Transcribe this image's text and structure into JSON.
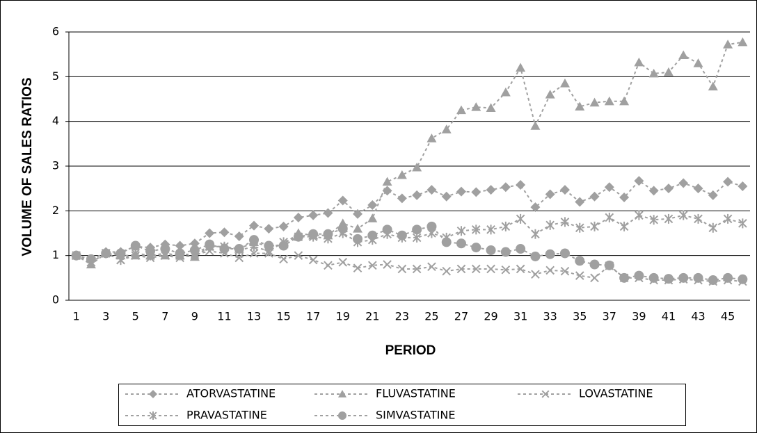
{
  "chart_data": {
    "type": "line",
    "x_label": "PERIOD",
    "y_label": "VOLUME OF SALES  RATIOS",
    "categories": [
      1,
      null,
      3,
      null,
      5,
      null,
      7,
      null,
      9,
      null,
      11,
      null,
      13,
      null,
      15,
      null,
      17,
      null,
      19,
      null,
      21,
      null,
      23,
      null,
      25,
      null,
      27,
      null,
      29,
      null,
      31,
      null,
      33,
      null,
      35,
      null,
      37,
      null,
      39,
      null,
      41,
      null,
      43,
      null,
      45,
      null
    ],
    "ylim": [
      0,
      6
    ],
    "yticks": [
      0,
      1,
      2,
      3,
      4,
      5,
      6
    ],
    "grid": true,
    "legend": "bottom",
    "series": [
      {
        "name": "ATORVASTATINE",
        "color": "#a0a0a0",
        "marker": "diamond",
        "values": [
          1.0,
          0.9,
          1.08,
          1.08,
          1.2,
          1.18,
          1.25,
          1.22,
          1.27,
          1.5,
          1.52,
          1.43,
          1.67,
          1.6,
          1.65,
          1.85,
          1.9,
          1.95,
          2.23,
          1.93,
          2.13,
          2.45,
          2.28,
          2.35,
          2.47,
          2.32,
          2.43,
          2.42,
          2.47,
          2.53,
          2.58,
          2.08,
          2.37,
          2.47,
          2.2,
          2.32,
          2.53,
          2.3,
          2.67,
          2.45,
          2.5,
          2.62,
          2.5,
          2.35,
          2.65,
          2.55
        ]
      },
      {
        "name": "FLUVASTATINE",
        "color": "#a0a0a0",
        "marker": "triangle",
        "values": [
          1.0,
          0.8,
          1.05,
          1.0,
          1.0,
          1.0,
          1.0,
          1.0,
          0.97,
          1.2,
          1.2,
          1.15,
          1.3,
          1.2,
          1.25,
          1.5,
          1.45,
          1.45,
          1.72,
          1.6,
          1.83,
          2.65,
          2.8,
          2.97,
          3.62,
          3.82,
          4.25,
          4.32,
          4.3,
          4.65,
          5.2,
          3.9,
          4.6,
          4.85,
          4.33,
          4.42,
          4.45,
          4.45,
          5.32,
          5.07,
          5.1,
          5.48,
          5.3,
          4.78,
          5.72,
          5.77
        ]
      },
      {
        "name": "LOVASTATINE",
        "color": "#a0a0a0",
        "marker": "x",
        "values": [
          1.0,
          0.85,
          1.05,
          0.9,
          1.0,
          0.95,
          1.0,
          0.95,
          1.02,
          1.1,
          1.05,
          0.95,
          1.05,
          1.05,
          0.92,
          1.0,
          0.9,
          0.78,
          0.85,
          0.72,
          0.78,
          0.8,
          0.7,
          0.7,
          0.75,
          0.65,
          0.7,
          0.7,
          0.7,
          0.68,
          0.7,
          0.58,
          0.67,
          0.65,
          0.55,
          0.5,
          0.77,
          0.5,
          0.5,
          0.45,
          0.45,
          0.47,
          0.45,
          0.42,
          0.45,
          0.42
        ]
      },
      {
        "name": "PRAVASTATINE",
        "color": "#a0a0a0",
        "marker": "asterisk",
        "values": [
          1.0,
          0.85,
          1.05,
          0.9,
          1.05,
          1.0,
          1.05,
          1.0,
          1.05,
          1.2,
          1.2,
          1.12,
          1.2,
          1.1,
          1.3,
          1.42,
          1.42,
          1.38,
          1.5,
          1.3,
          1.35,
          1.48,
          1.4,
          1.4,
          1.5,
          1.4,
          1.55,
          1.58,
          1.58,
          1.65,
          1.82,
          1.48,
          1.68,
          1.75,
          1.62,
          1.65,
          1.85,
          1.65,
          1.9,
          1.8,
          1.82,
          1.9,
          1.82,
          1.62,
          1.82,
          1.72
        ]
      },
      {
        "name": "SIMVASTATINE",
        "color": "#a0a0a0",
        "marker": "circle",
        "values": [
          1.0,
          0.92,
          1.05,
          1.05,
          1.22,
          1.1,
          1.15,
          1.05,
          1.12,
          1.25,
          1.15,
          1.15,
          1.35,
          1.22,
          1.22,
          1.42,
          1.48,
          1.48,
          1.6,
          1.37,
          1.45,
          1.58,
          1.45,
          1.58,
          1.65,
          1.3,
          1.27,
          1.18,
          1.12,
          1.08,
          1.15,
          0.98,
          1.03,
          1.05,
          0.88,
          0.8,
          0.78,
          0.5,
          0.55,
          0.5,
          0.48,
          0.5,
          0.5,
          0.45,
          0.5,
          0.47
        ]
      }
    ]
  }
}
